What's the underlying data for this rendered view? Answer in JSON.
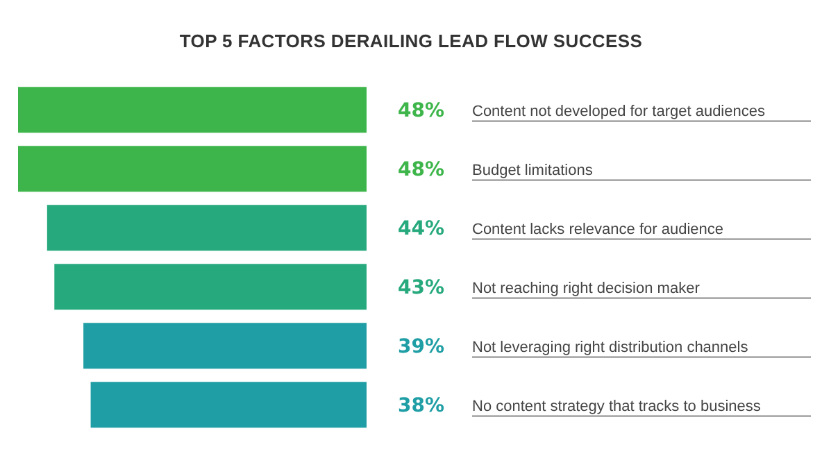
{
  "chart_data": {
    "type": "bar",
    "orientation": "horizontal",
    "title": "TOP 5 FACTORS DERAILING LEAD FLOW SUCCESS",
    "categories": [
      "Content not developed for target audiences",
      "Budget limitations",
      "Content lacks relevance for audience",
      "Not reaching right decision maker",
      "Not leveraging right distribution channels",
      "No content strategy that tracks to business"
    ],
    "values": [
      48,
      48,
      44,
      43,
      39,
      38
    ],
    "colors": [
      "#3db54a",
      "#3db54a",
      "#27a97e",
      "#27a97e",
      "#1f9ea5",
      "#1f9ea5"
    ],
    "value_labels": [
      "48%",
      "48%",
      "44%",
      "43%",
      "39%",
      "38%"
    ]
  }
}
